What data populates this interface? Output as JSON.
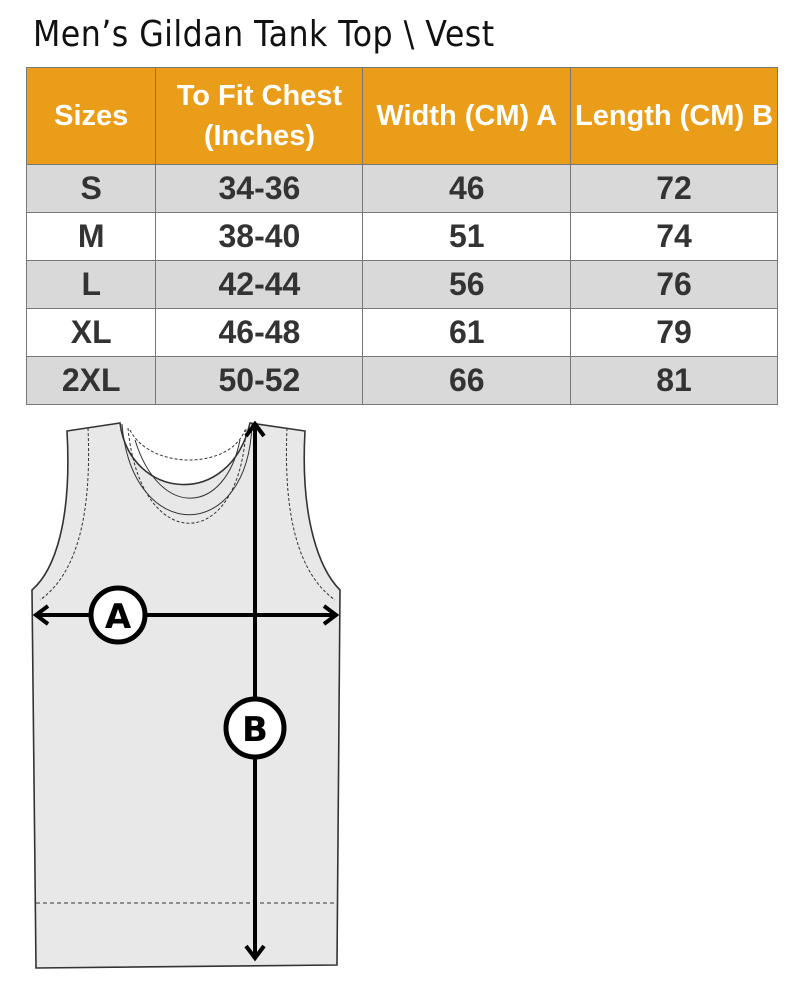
{
  "title": "Men’s Gildan Tank Top \\ Vest",
  "table": {
    "headers": [
      "Sizes",
      "To Fit Chest (Inches)",
      "Width (CM) A",
      "Length  (CM) B"
    ],
    "rows": [
      [
        "S",
        "34-36",
        "46",
        "72"
      ],
      [
        "M",
        "38-40",
        "51",
        "74"
      ],
      [
        "L",
        "42-44",
        "56",
        "76"
      ],
      [
        "XL",
        "46-48",
        "61",
        "79"
      ],
      [
        "2XL",
        "50-52",
        "66",
        "81"
      ]
    ]
  },
  "diagram": {
    "label_a": "A",
    "label_b": "B"
  },
  "colors": {
    "header": "#ea9d18",
    "stripe": "#d9d9d9",
    "garment": "#e8e8e8"
  }
}
